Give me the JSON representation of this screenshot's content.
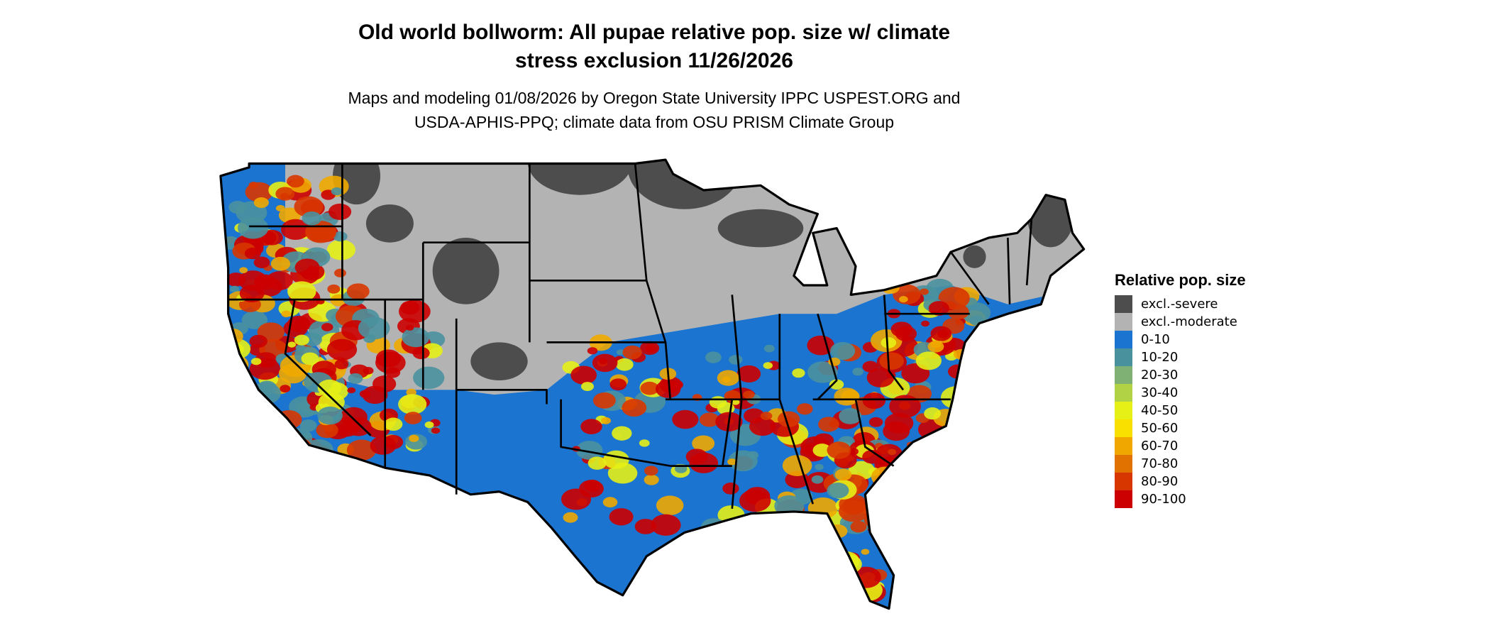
{
  "title": {
    "line1": "Old world bollworm: All pupae relative pop. size w/ climate",
    "line2": "stress exclusion 11/26/2026"
  },
  "subtitle": {
    "line1": "Maps and modeling 01/08/2026 by Oregon State University IPPC USPEST.ORG and",
    "line2": "USDA-APHIS-PPQ; climate data from OSU PRISM Climate Group"
  },
  "legend": {
    "title": "Relative pop. size",
    "items": [
      {
        "label": "excl.-severe",
        "color": "#4d4d4d"
      },
      {
        "label": "excl.-moderate",
        "color": "#b3b3b3"
      },
      {
        "label": "0-10",
        "color": "#1a74d0"
      },
      {
        "label": "10-20",
        "color": "#4a919e"
      },
      {
        "label": "20-30",
        "color": "#7fb074"
      },
      {
        "label": "30-40",
        "color": "#b2d246"
      },
      {
        "label": "40-50",
        "color": "#e6f016"
      },
      {
        "label": "50-60",
        "color": "#f9e000"
      },
      {
        "label": "60-70",
        "color": "#f0a800"
      },
      {
        "label": "70-80",
        "color": "#e27200"
      },
      {
        "label": "80-90",
        "color": "#d83600"
      },
      {
        "label": "90-100",
        "color": "#cc0000"
      }
    ]
  },
  "map": {
    "region": "contiguous United States",
    "state_border_color": "#000000"
  }
}
